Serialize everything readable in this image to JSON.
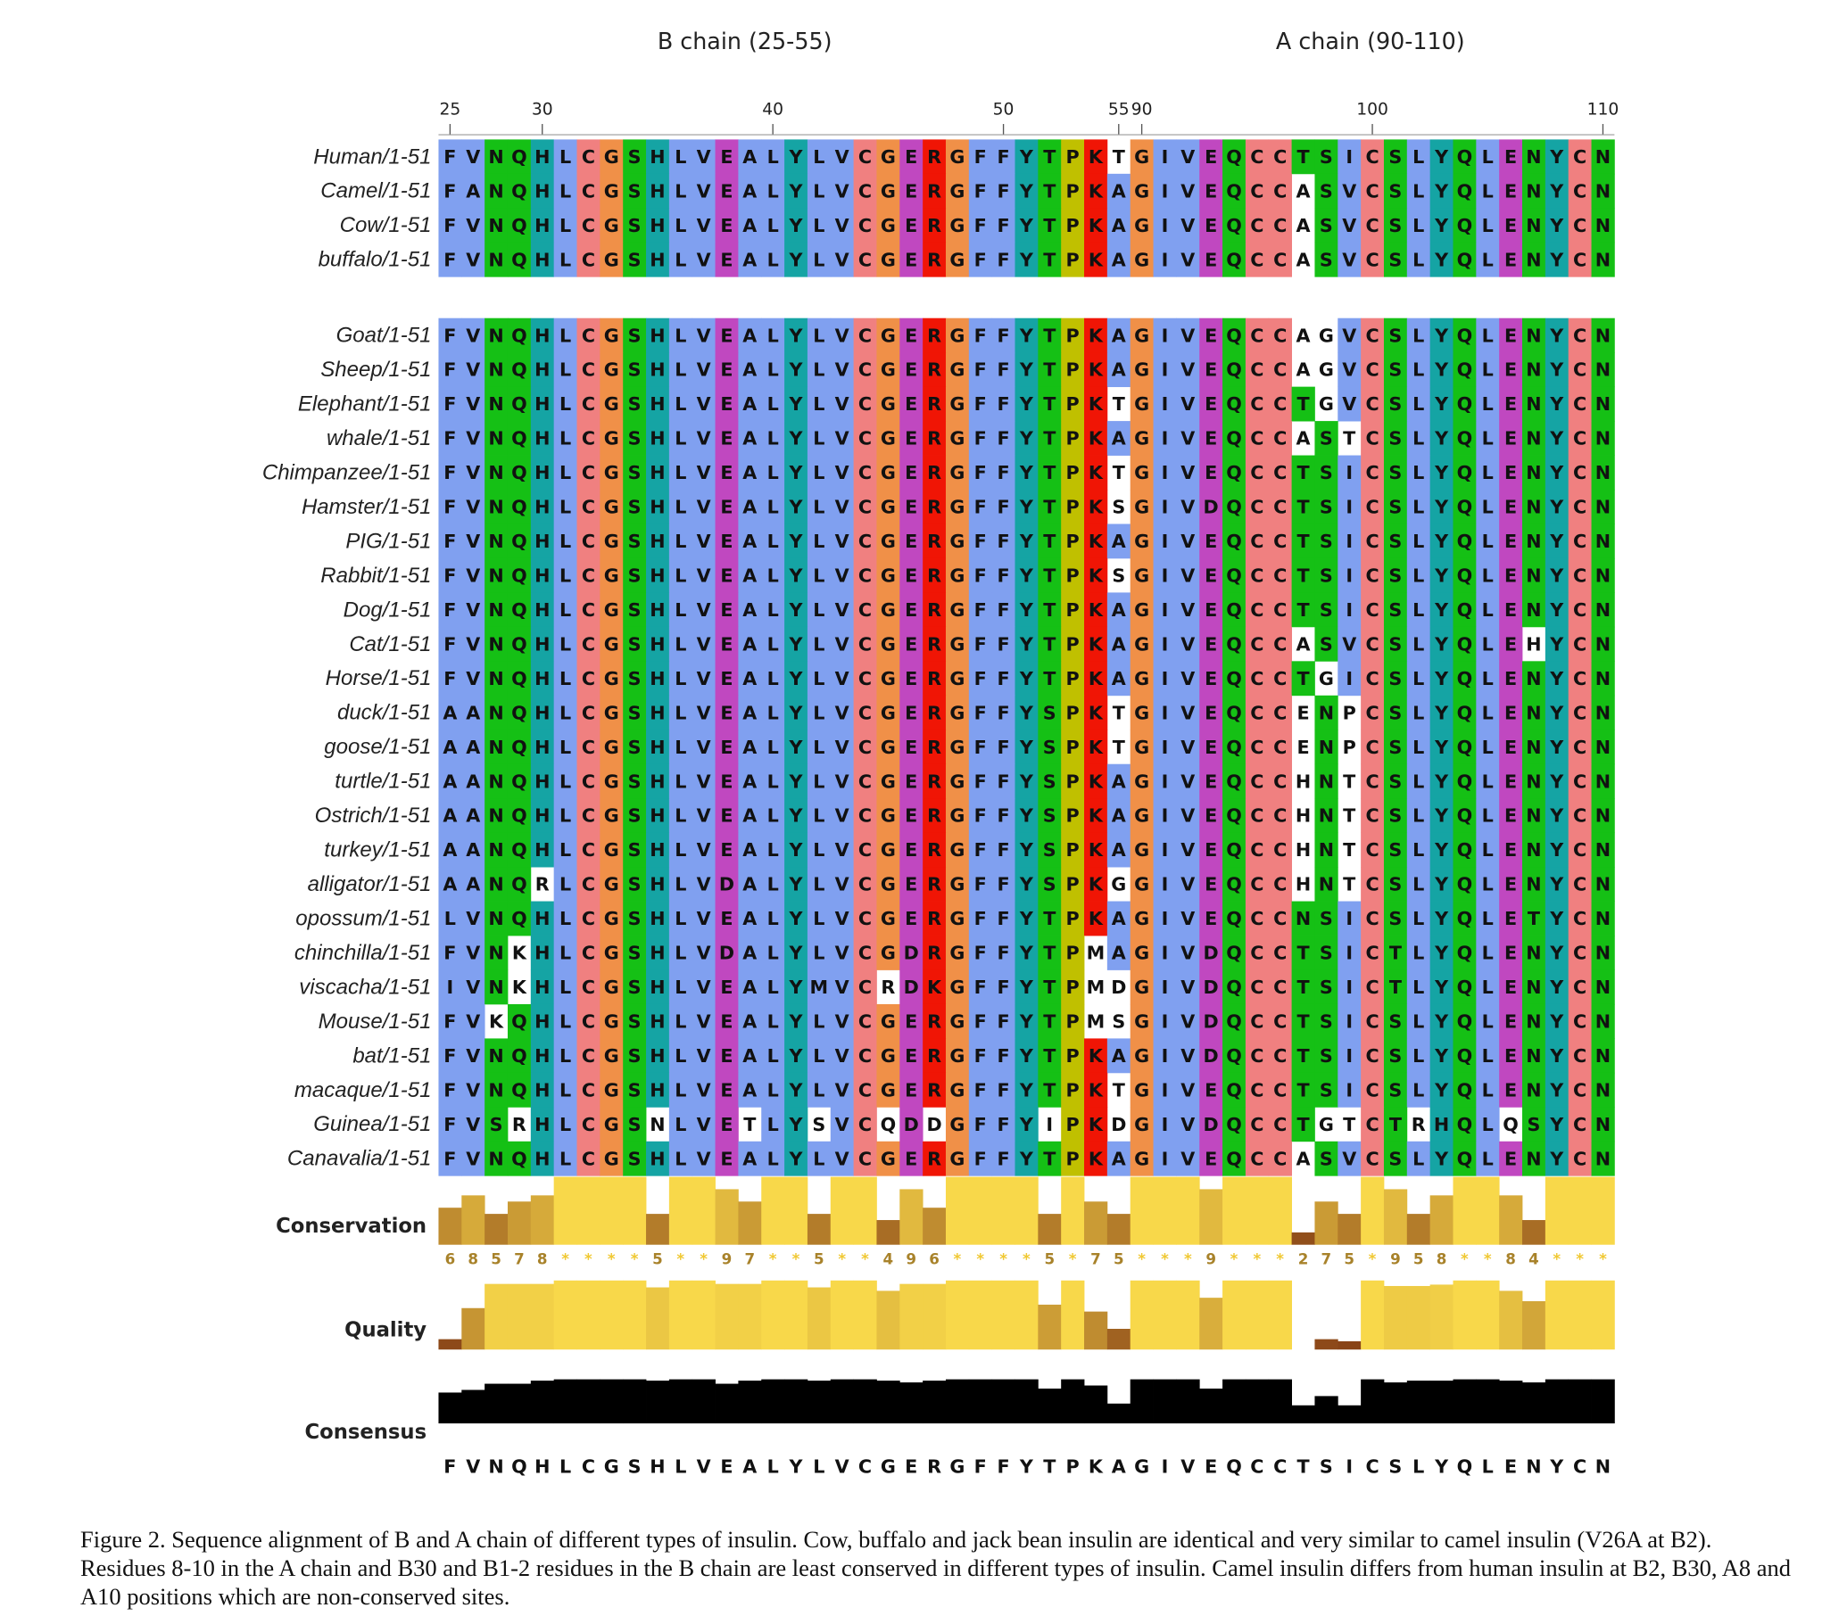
{
  "figure": {
    "chain_labels": [
      "B chain (25-55)",
      "A chain (90-110)"
    ],
    "ruler": [
      {
        "value": 25,
        "column": 1
      },
      {
        "value": 30,
        "column": 5
      },
      {
        "value": 40,
        "column": 15
      },
      {
        "value": 50,
        "column": 25
      },
      {
        "value": 55,
        "column": 30
      },
      {
        "value": 90,
        "column": 31
      },
      {
        "value": 100,
        "column": 41
      },
      {
        "value": 110,
        "column": 51
      }
    ],
    "groups": [
      {
        "rows": [
          {
            "name": "Human/1-51",
            "sequence": "FVNQHLCGSHLVEALYLVCGERGFFYTPKTGIVEQCCTSICSLYQLENYCN"
          },
          {
            "name": "Camel/1-51",
            "sequence": "FANQHLCGSHLVEALYLVCGERGFFYTPKAGIVEQCCASVCSLYQLENYCN"
          },
          {
            "name": "Cow/1-51",
            "sequence": "FVNQHLCGSHLVEALYLVCGERGFFYTPKAGIVEQCCASVCSLYQLENYCN"
          },
          {
            "name": "buffalo/1-51",
            "sequence": "FVNQHLCGSHLVEALYLVCGERGFFYTPKAGIVEQCCASVCSLYQLENYCN"
          }
        ]
      },
      {
        "rows": [
          {
            "name": "Goat/1-51",
            "sequence": "FVNQHLCGSHLVEALYLVCGERGFFYTPKAGIVEQCCAGVCSLYQLENYCN"
          },
          {
            "name": "Sheep/1-51",
            "sequence": "FVNQHLCGSHLVEALYLVCGERGFFYTPKAGIVEQCCAGVCSLYQLENYCN"
          },
          {
            "name": "Elephant/1-51",
            "sequence": "FVNQHLCGSHLVEALYLVCGERGFFYTPKTGIVEQCCTGVCSLYQLENYCN"
          },
          {
            "name": "whale/1-51",
            "sequence": "FVNQHLCGSHLVEALYLVCGERGFFYTPKAGIVEQCCASTCSLYQLENYCN"
          },
          {
            "name": "Chimpanzee/1-51",
            "sequence": "FVNQHLCGSHLVEALYLVCGERGFFYTPKTGIVEQCCTSICSLYQLENYCN"
          },
          {
            "name": "Hamster/1-51",
            "sequence": "FVNQHLCGSHLVEALYLVCGERGFFYTPKSGIVDQCCTSICSLYQLENYCN"
          },
          {
            "name": "PIG/1-51",
            "sequence": "FVNQHLCGSHLVEALYLVCGERGFFYTPKAGIVEQCCTSICSLYQLENYCN"
          },
          {
            "name": "Rabbit/1-51",
            "sequence": "FVNQHLCGSHLVEALYLVCGERGFFYTPKSGIVEQCCTSICSLYQLENYCN"
          },
          {
            "name": "Dog/1-51",
            "sequence": "FVNQHLCGSHLVEALYLVCGERGFFYTPKAGIVEQCCTSICSLYQLENYCN"
          },
          {
            "name": "Cat/1-51",
            "sequence": "FVNQHLCGSHLVEALYLVCGERGFFYTPKAGIVEQCCASVCSLYQLEHYCN"
          },
          {
            "name": "Horse/1-51",
            "sequence": "FVNQHLCGSHLVEALYLVCGERGFFYTPKAGIVEQCCTGICSLYQLENYCN"
          },
          {
            "name": "duck/1-51",
            "sequence": "AANQHLCGSHLVEALYLVCGERGFFYSPKTGIVEQCCENPCSLYQLENYCN"
          },
          {
            "name": "goose/1-51",
            "sequence": "AANQHLCGSHLVEALYLVCGERGFFYSPKTGIVEQCCENPCSLYQLENYCN"
          },
          {
            "name": "turtle/1-51",
            "sequence": "AANQHLCGSHLVEALYLVCGERGFFYSPKAGIVEQCCHNTCSLYQLENYCN"
          },
          {
            "name": "Ostrich/1-51",
            "sequence": "AANQHLCGSHLVEALYLVCGERGFFYSPKAGIVEQCCHNTCSLYQLENYCN"
          },
          {
            "name": "turkey/1-51",
            "sequence": "AANQHLCGSHLVEALYLVCGERGFFYSPKAGIVEQCCHNTCSLYQLENYCN"
          },
          {
            "name": "alligator/1-51",
            "sequence": "AANQRLCGSHLVDALYLVCGERGFFYSPKGGIVEQCCHNTCSLYQLENYCN"
          },
          {
            "name": "opossum/1-51",
            "sequence": "LVNQHLCGSHLVEALYLVCGERGFFYTPKAGIVEQCCNSICSLYQLETYCN"
          },
          {
            "name": "chinchilla/1-51",
            "sequence": "FVNKHLCGSHLVDALYLVCGDRGFFYTPMAGIVDQCCTSICTLYQLENYCN"
          },
          {
            "name": "viscacha/1-51",
            "sequence": "IVNKHLCGSHLVEALYMVCRDKGFFYTPMDGIVDQCCTSICTLYQLENYCN"
          },
          {
            "name": "Mouse/1-51",
            "sequence": "FVKQHLCGSHLVEALYLVCGERGFFYTPMSGIVDQCCTSICSLYQLENYCN"
          },
          {
            "name": "bat/1-51",
            "sequence": "FVNQHLCGSHLVEALYLVCGERGFFYTPKAGIVDQCCTSICSLYQLENYCN"
          },
          {
            "name": "macaque/1-51",
            "sequence": "FVNQHLCGSHLVEALYLVCGERGFFYTPKTGIVEQCCTSICSLYQLENYCN"
          },
          {
            "name": "Guinea/1-51",
            "sequence": "FVSRHLCGSNLVETLYSVCQDDGFFYIPKDGIVDQCCTGTCTRHQLQSYCN"
          },
          {
            "name": "Canavalia/1-51",
            "sequence": "FVNQHLCGSHLVEALYLVCGERGFFYTPKAGIVEQCCASVCSLYQLENYCN"
          }
        ]
      }
    ],
    "color_scheme": [
      {
        "residues": "AILMFWV",
        "color": "#80a0f0"
      },
      {
        "residues": "KR",
        "color": "#f01505"
      },
      {
        "residues": "ED",
        "color": "#c048c0"
      },
      {
        "residues": "NQST",
        "color": "#15c015"
      },
      {
        "residues": "C",
        "color": "#f08080"
      },
      {
        "residues": "G",
        "color": "#f09048"
      },
      {
        "residues": "P",
        "color": "#c0c000"
      },
      {
        "residues": "HY",
        "color": "#15a4a4"
      }
    ],
    "annotations": {
      "conservation": {
        "label": "Conservation",
        "ylim": [
          0,
          11
        ],
        "colors": [
          "#7a3010",
          "#f8d84a"
        ],
        "values": [
          6,
          8,
          5,
          7,
          8,
          11,
          11,
          11,
          11,
          5,
          11,
          11,
          9,
          7,
          11,
          11,
          5,
          11,
          11,
          4,
          9,
          6,
          11,
          11,
          11,
          11,
          5,
          11,
          7,
          5,
          11,
          11,
          11,
          9,
          11,
          11,
          11,
          2,
          7,
          5,
          11,
          9,
          5,
          8,
          11,
          11,
          8,
          4,
          11,
          11,
          11
        ],
        "value_labels": [
          "6",
          "8",
          "5",
          "7",
          "8",
          "*",
          "*",
          "*",
          "*",
          "5",
          "*",
          "*",
          "9",
          "7",
          "*",
          "*",
          "5",
          "*",
          "*",
          "4",
          "9",
          "6",
          "*",
          "*",
          "*",
          "*",
          "5",
          "*",
          "7",
          "5",
          "*",
          "*",
          "*",
          "9",
          "*",
          "*",
          "*",
          "2",
          "7",
          "5",
          "*",
          "9",
          "5",
          "8",
          "*",
          "*",
          "8",
          "4",
          "*",
          "*",
          "*"
        ]
      },
      "quality": {
        "label": "Quality",
        "ylim": [
          0,
          100
        ],
        "colors": [
          "#7a3010",
          "#f8d84a"
        ],
        "values": [
          15,
          60,
          95,
          95,
          95,
          100,
          100,
          100,
          100,
          90,
          100,
          100,
          95,
          95,
          100,
          100,
          90,
          100,
          100,
          85,
          95,
          95,
          100,
          100,
          100,
          100,
          65,
          100,
          55,
          30,
          100,
          100,
          100,
          75,
          100,
          100,
          100,
          0,
          15,
          12,
          100,
          92,
          92,
          94,
          100,
          100,
          85,
          70,
          100,
          100,
          100
        ]
      },
      "consensus": {
        "label": "Consensus",
        "ylim": [
          0,
          100
        ],
        "color": "#000000",
        "values": [
          70,
          76,
          90,
          90,
          97,
          100,
          100,
          100,
          100,
          97,
          100,
          100,
          90,
          97,
          100,
          100,
          97,
          100,
          100,
          97,
          93,
          97,
          100,
          100,
          100,
          100,
          79,
          100,
          86,
          45,
          100,
          100,
          100,
          79,
          100,
          100,
          100,
          41,
          62,
          41,
          100,
          93,
          97,
          97,
          100,
          100,
          97,
          93,
          100,
          100,
          100
        ],
        "sequence": "FVNQHLCGSHLVEALYLVCGERGFFYTPKAGIVEQCCTSICSLYQLENYCN"
      }
    },
    "caption": "Figure 2. Sequence alignment of B and A chain of different types of insulin. Cow, buffalo and jack bean insulin are identical and very similar to camel insulin (V26A at B2). Residues 8-10 in the A chain and B30 and B1-2 residues in the B chain are least conserved in different types of insulin. Camel insulin differs from human insulin at B2, B30, A8 and A10 positions which are non-conserved sites."
  }
}
